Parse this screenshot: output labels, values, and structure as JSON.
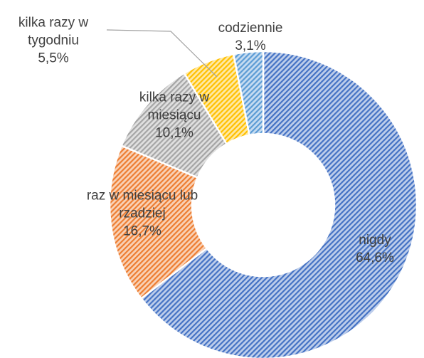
{
  "chart_data": {
    "type": "donut",
    "categories": [
      "nigdy",
      "raz w miesiącu lub rzadziej",
      "kilka razy w miesiącu",
      "kilka razy w tygodniu",
      "codziennie"
    ],
    "values": [
      64.6,
      16.7,
      10.1,
      5.5,
      3.1
    ],
    "value_labels": [
      "64,6%",
      "16,7%",
      "10,1%",
      "5,5%",
      "3,1%"
    ],
    "colors": [
      "#4472c4",
      "#ed7d31",
      "#a5a5a5",
      "#ffc000",
      "#5b9bd5"
    ]
  }
}
